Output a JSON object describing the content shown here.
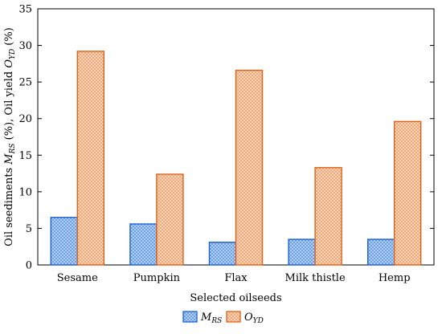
{
  "chart_data": {
    "type": "bar",
    "categories": [
      "Sesame",
      "Pumpkin",
      "Flax",
      "Milk thistle",
      "Hemp"
    ],
    "series": [
      {
        "name": "M",
        "subscript": "RS",
        "color": "#1f5fd6",
        "fill": "#9ec3f5",
        "values": [
          6.5,
          5.6,
          3.1,
          3.5,
          3.5
        ]
      },
      {
        "name": "O",
        "subscript": "YD",
        "color": "#e0621a",
        "fill": "#f7c8a4",
        "values": [
          29.2,
          12.4,
          26.6,
          13.3,
          19.6
        ]
      }
    ],
    "xlabel": "Selected oilseeds",
    "ylabel_parts": [
      "Oil seediments ",
      "M",
      "RS",
      " (%), Oil yield ",
      "O",
      "YD",
      " (%)"
    ],
    "ylim": [
      0,
      35
    ],
    "yticks": [
      0,
      5,
      10,
      15,
      20,
      25,
      30,
      35
    ],
    "legend_position": "bottom",
    "grid": false
  }
}
